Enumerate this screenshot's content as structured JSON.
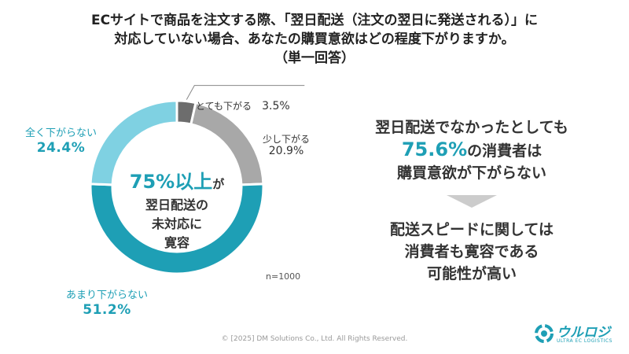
{
  "title": {
    "line1": "ECサイトで商品を注文する際、「翌日配送（注文の翌日に発送される）」に",
    "line2": "対応していない場合、あなたの購買意欲はどの程度下がりますか。",
    "line3": "（単一回答）"
  },
  "chart_data": {
    "type": "pie",
    "donut": true,
    "categories": [
      "とても下がる",
      "少し下がる",
      "あまり下がらない",
      "全く下がらない"
    ],
    "values": [
      3.5,
      20.9,
      51.2,
      24.4
    ],
    "value_labels": [
      "3.5%",
      "20.9%",
      "51.2%",
      "24.4%"
    ],
    "colors": [
      "#6d6d6d",
      "#a8a8a8",
      "#1e9fb5",
      "#7fd1e2"
    ],
    "center_text": {
      "big": "75%以上",
      "small": "が",
      "line2": "翌日配送の",
      "line3": "未対応に",
      "line4": "寛容"
    },
    "note": "n=1000"
  },
  "summary": {
    "line1": "翌日配送でなかったとしても",
    "line2_pct": "75.6%",
    "line2_rest": "の消費者は",
    "line3": "購買意欲が下がらない",
    "arrow_icon": "down-triangle-arrow-icon",
    "line4": "配送スピードに関しては",
    "line5": "消費者も寛容である",
    "line6": "可能性が高い"
  },
  "footer": {
    "copyright": "© [2025] DM Solutions Co., Ltd. All Rights Reserved."
  },
  "logo": {
    "name": "ウルロジ",
    "sub": "ULTRA EC LOGISTICS",
    "icon": "ultra-ec-logistics-logo-icon"
  }
}
